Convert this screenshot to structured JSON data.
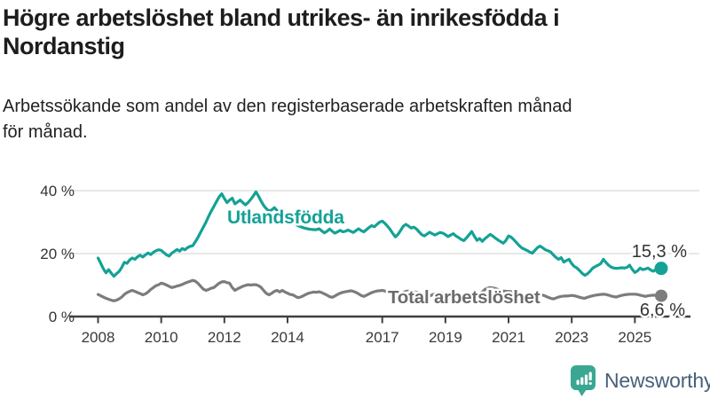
{
  "title": {
    "text": "Högre arbetslöshet bland utrikes- än inrikesfödda i Nordanstig",
    "lines": [
      "Högre arbetslöshet bland utrikes- än inrikesfödda i",
      "Nordanstig"
    ]
  },
  "subtitle": {
    "text": "Arbetssökande som andel av den registerbaserade arbetskraften månad för månad.",
    "lines": [
      "Arbetssökande som andel av den registerbaserade arbetskraften månad",
      "för månad."
    ]
  },
  "branding": {
    "logo_text": "Newsworthy",
    "logo_icon": "bar-chart-speech-bubble-icon",
    "icon_color": "#3aa792",
    "text_color": "#47617a"
  },
  "colors": {
    "accent_teal": "#14a296",
    "line_total": "#7c7c7c",
    "label_total": "#6b6b6b",
    "end_label": "#333333",
    "axis": "#404040",
    "grid": "#d9d9d9",
    "text": "#1f1f1f"
  },
  "chart_data": {
    "type": "line",
    "title": "Högre arbetslöshet bland utrikes- än inrikesfödda i Nordanstig",
    "subtitle": "Arbetssökande som andel av den registerbaserade arbetskraften månad för månad.",
    "x_unit": "month",
    "x_start": "2008-01",
    "x_end": "2025-11",
    "x_tick_labels": [
      "2008",
      "2010",
      "2012",
      "2014",
      "2017",
      "2019",
      "2021",
      "2023",
      "2025"
    ],
    "y_ticks": [
      {
        "value": 0,
        "label": "0 %"
      },
      {
        "value": 20,
        "label": "20 %"
      },
      {
        "value": 40,
        "label": "40 %"
      }
    ],
    "ylim": [
      0,
      44
    ],
    "grid": true,
    "series": [
      {
        "name": "Utlandsfödda",
        "color": "#14a296",
        "label_color": "#14a296",
        "end_label": "15,3 %",
        "end_value": 15.3,
        "values": [
          18.6,
          16.9,
          15.2,
          13.9,
          14.9,
          13.8,
          12.8,
          13.6,
          14.3,
          15.6,
          17.2,
          16.9,
          18.0,
          18.6,
          18.2,
          19.0,
          19.5,
          18.9,
          19.6,
          20.2,
          19.7,
          20.4,
          20.9,
          21.2,
          21.0,
          20.3,
          19.6,
          19.2,
          20.1,
          20.7,
          21.3,
          20.8,
          21.6,
          21.2,
          21.9,
          22.3,
          22.5,
          23.8,
          25.2,
          26.8,
          28.4,
          30.0,
          31.8,
          33.5,
          35.0,
          36.5,
          38.0,
          39.0,
          37.5,
          36.2,
          37.0,
          37.6,
          35.8,
          36.4,
          37.0,
          36.2,
          35.5,
          36.2,
          37.2,
          38.3,
          39.6,
          38.2,
          36.6,
          35.2,
          34.2,
          33.5,
          33.9,
          34.6,
          33.7,
          33.0,
          32.3,
          31.6,
          31.0,
          30.4,
          29.8,
          29.3,
          28.9,
          28.5,
          28.2,
          28.0,
          27.8,
          27.7,
          27.6,
          27.6,
          27.9,
          27.2,
          26.6,
          27.1,
          27.8,
          27.1,
          26.5,
          26.9,
          27.4,
          26.9,
          27.1,
          27.5,
          27.1,
          26.7,
          27.3,
          27.9,
          27.3,
          26.9,
          27.6,
          28.3,
          28.9,
          28.5,
          29.3,
          30.0,
          30.3,
          29.6,
          28.7,
          27.7,
          26.4,
          25.3,
          26.1,
          27.4,
          28.7,
          29.3,
          28.7,
          28.1,
          28.4,
          27.8,
          26.9,
          26.0,
          25.6,
          26.2,
          26.8,
          26.3,
          25.9,
          26.3,
          26.7,
          26.5,
          26.0,
          25.4,
          25.9,
          26.3,
          25.6,
          25.1,
          24.5,
          24.1,
          25.0,
          26.0,
          27.0,
          25.5,
          24.2,
          24.8,
          23.9,
          24.7,
          25.4,
          26.1,
          25.6,
          24.9,
          24.3,
          23.8,
          23.3,
          24.2,
          25.6,
          25.2,
          24.4,
          23.5,
          22.6,
          21.8,
          21.4,
          21.0,
          20.5,
          20.1,
          21.0,
          21.9,
          22.4,
          21.8,
          21.2,
          20.9,
          20.5,
          19.6,
          18.8,
          18.2,
          18.7,
          17.3,
          17.8,
          18.2,
          16.8,
          15.9,
          15.4,
          14.6,
          13.7,
          13.1,
          13.6,
          14.4,
          15.4,
          15.9,
          16.3,
          16.8,
          18.2,
          17.2,
          16.3,
          15.7,
          15.4,
          15.3,
          15.4,
          15.5,
          15.4,
          15.6,
          16.3,
          15.0,
          14.0,
          14.5,
          15.4,
          14.9,
          15.1,
          15.4,
          14.8,
          14.4,
          15.0,
          14.7,
          15.3
        ]
      },
      {
        "name": "Total arbetslöshet",
        "color": "#7c7c7c",
        "label_color": "#6b6b6b",
        "end_label": "6,6 %",
        "end_value": 6.6,
        "values": [
          7.0,
          6.6,
          6.2,
          5.8,
          5.5,
          5.2,
          5.0,
          5.2,
          5.6,
          6.2,
          7.0,
          7.6,
          8.0,
          8.3,
          8.0,
          7.6,
          7.3,
          6.9,
          7.2,
          7.8,
          8.6,
          9.2,
          9.8,
          10.1,
          10.6,
          10.4,
          10.0,
          9.6,
          9.2,
          9.4,
          9.7,
          9.9,
          10.2,
          10.6,
          10.9,
          11.2,
          11.5,
          11.2,
          10.5,
          9.6,
          8.7,
          8.3,
          8.6,
          9.0,
          9.2,
          9.9,
          10.6,
          11.0,
          11.1,
          10.8,
          10.6,
          9.2,
          8.3,
          8.8,
          9.2,
          9.6,
          9.9,
          10.1,
          10.0,
          10.1,
          10.1,
          9.8,
          9.2,
          8.2,
          7.3,
          6.9,
          7.4,
          8.0,
          8.3,
          7.8,
          8.3,
          7.8,
          7.4,
          7.0,
          6.9,
          6.4,
          6.0,
          6.2,
          6.6,
          7.0,
          7.4,
          7.6,
          7.8,
          7.7,
          7.9,
          7.6,
          7.2,
          6.8,
          6.3,
          6.1,
          6.5,
          7.0,
          7.4,
          7.7,
          7.9,
          8.0,
          8.2,
          8.0,
          7.7,
          7.2,
          6.7,
          6.4,
          6.8,
          7.2,
          7.6,
          7.9,
          8.1,
          8.2,
          8.3,
          8.1,
          7.8,
          7.3,
          6.8,
          6.5,
          6.9,
          7.3,
          7.7,
          8.0,
          8.1,
          8.0,
          7.9,
          7.7,
          7.4,
          6.9,
          6.4,
          6.1,
          6.5,
          6.9,
          7.2,
          7.4,
          7.5,
          7.4,
          7.4,
          7.2,
          6.9,
          6.5,
          6.1,
          5.9,
          6.3,
          6.7,
          7.0,
          7.2,
          7.3,
          7.3,
          7.4,
          7.3,
          7.8,
          8.6,
          9.0,
          9.2,
          9.1,
          8.9,
          8.6,
          8.3,
          8.1,
          8.0,
          8.0,
          7.9,
          7.6,
          7.2,
          6.8,
          6.5,
          6.7,
          6.9,
          7.0,
          7.0,
          6.9,
          6.9,
          6.9,
          6.8,
          6.5,
          6.1,
          5.8,
          5.6,
          5.9,
          6.2,
          6.4,
          6.5,
          6.5,
          6.6,
          6.7,
          6.6,
          6.4,
          6.1,
          5.9,
          5.8,
          6.1,
          6.4,
          6.6,
          6.8,
          6.9,
          7.0,
          7.1,
          7.0,
          6.8,
          6.5,
          6.3,
          6.2,
          6.5,
          6.7,
          6.9,
          7.0,
          7.1,
          7.1,
          7.1,
          7.0,
          6.8,
          6.6,
          6.4,
          6.6,
          6.7,
          6.8,
          6.7,
          6.6,
          6.6
        ]
      }
    ],
    "legend_position": "inline-labels"
  }
}
